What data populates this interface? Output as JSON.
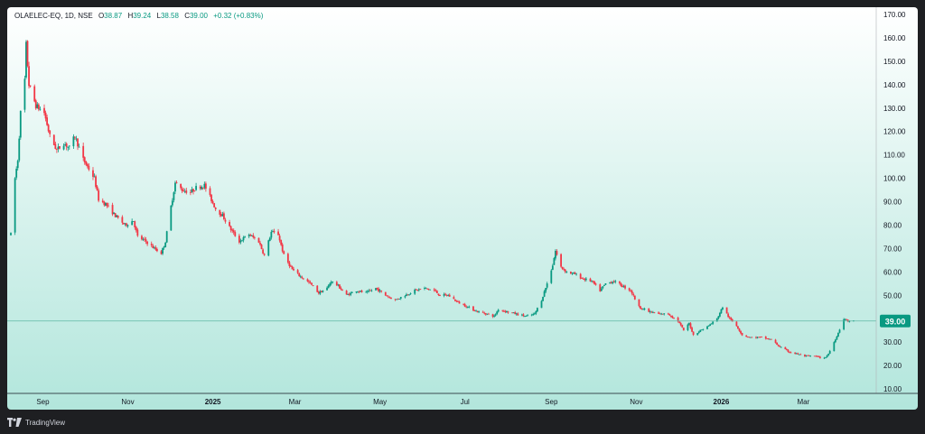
{
  "legend": {
    "symbol": "OLAELEC-EQ, 1D, NSE",
    "open_label": "O",
    "open": "38.87",
    "high_label": "H",
    "high": "39.24",
    "low_label": "L",
    "low": "38.58",
    "close_label": "C",
    "close": "39.00",
    "change": "+0.32 (+0.83%)"
  },
  "branding": {
    "name": "TradingView"
  },
  "colors": {
    "up": "#089981",
    "down": "#f23645",
    "bg_top": "#ffffff",
    "bg_bottom": "#b2e6dc",
    "price_tag": "#089981",
    "price_line": "#5fb8a5"
  },
  "chart_data": {
    "type": "candlestick",
    "ylim": [
      7,
      172
    ],
    "y_ticks": [
      10,
      20,
      30,
      40,
      50,
      60,
      70,
      80,
      90,
      100,
      110,
      120,
      130,
      140,
      150,
      160,
      170
    ],
    "y_tick_labels": [
      "10.00",
      "20.00",
      "30.00",
      "40.00",
      "50.00",
      "60.00",
      "70.00",
      "80.00",
      "90.00",
      "100.00",
      "110.00",
      "120.00",
      "130.00",
      "140.00",
      "150.00",
      "160.00",
      "170.00"
    ],
    "x_range": [
      "2024-08-09",
      "2026-04-12"
    ],
    "x_ticks": [
      {
        "date": "2024-09-01",
        "label": "Sep",
        "bold": false
      },
      {
        "date": "2024-11-01",
        "label": "Nov",
        "bold": false
      },
      {
        "date": "2025-01-01",
        "label": "2025",
        "bold": true
      },
      {
        "date": "2025-03-01",
        "label": "Mar",
        "bold": false
      },
      {
        "date": "2025-05-01",
        "label": "May",
        "bold": false
      },
      {
        "date": "2025-07-01",
        "label": "Jul",
        "bold": false
      },
      {
        "date": "2025-09-01",
        "label": "Sep",
        "bold": false
      },
      {
        "date": "2025-11-01",
        "label": "Nov",
        "bold": false
      },
      {
        "date": "2026-01-01",
        "label": "2026",
        "bold": true
      },
      {
        "date": "2026-03-01",
        "label": "Mar",
        "bold": false
      }
    ],
    "last_price": 39.0,
    "last_price_label": "39.00",
    "grid": false,
    "price_path": [
      [
        "2024-08-09",
        76
      ],
      [
        "2024-08-12",
        100
      ],
      [
        "2024-08-14",
        108
      ],
      [
        "2024-08-16",
        128
      ],
      [
        "2024-08-19",
        142
      ],
      [
        "2024-08-20",
        157
      ],
      [
        "2024-08-22",
        140
      ],
      [
        "2024-08-27",
        131
      ],
      [
        "2024-09-02",
        128
      ],
      [
        "2024-09-06",
        118
      ],
      [
        "2024-09-11",
        112
      ],
      [
        "2024-09-16",
        115
      ],
      [
        "2024-09-20",
        113
      ],
      [
        "2024-09-24",
        118
      ],
      [
        "2024-09-30",
        108
      ],
      [
        "2024-10-04",
        104
      ],
      [
        "2024-10-08",
        100
      ],
      [
        "2024-10-11",
        91
      ],
      [
        "2024-10-16",
        89
      ],
      [
        "2024-10-23",
        84
      ],
      [
        "2024-10-30",
        80
      ],
      [
        "2024-11-05",
        82
      ],
      [
        "2024-11-08",
        75
      ],
      [
        "2024-11-14",
        73
      ],
      [
        "2024-11-20",
        70
      ],
      [
        "2024-11-25",
        68
      ],
      [
        "2024-11-28",
        73
      ],
      [
        "2024-12-02",
        88
      ],
      [
        "2024-12-05",
        98
      ],
      [
        "2024-12-10",
        95
      ],
      [
        "2024-12-16",
        94
      ],
      [
        "2024-12-20",
        96
      ],
      [
        "2024-12-26",
        97
      ],
      [
        "2025-01-03",
        87
      ],
      [
        "2025-01-08",
        84
      ],
      [
        "2025-01-13",
        79
      ],
      [
        "2025-01-20",
        73
      ],
      [
        "2025-01-27",
        76
      ],
      [
        "2025-02-03",
        73
      ],
      [
        "2025-02-07",
        67
      ],
      [
        "2025-02-12",
        77
      ],
      [
        "2025-02-17",
        76
      ],
      [
        "2025-02-21",
        67
      ],
      [
        "2025-02-27",
        61
      ],
      [
        "2025-03-05",
        58
      ],
      [
        "2025-03-12",
        55
      ],
      [
        "2025-03-18",
        51
      ],
      [
        "2025-03-24",
        53
      ],
      [
        "2025-03-27",
        56
      ],
      [
        "2025-04-01",
        54
      ],
      [
        "2025-04-07",
        50
      ],
      [
        "2025-04-14",
        52
      ],
      [
        "2025-04-21",
        51
      ],
      [
        "2025-04-28",
        53
      ],
      [
        "2025-05-05",
        50
      ],
      [
        "2025-05-12",
        48
      ],
      [
        "2025-05-19",
        50
      ],
      [
        "2025-05-26",
        52
      ],
      [
        "2025-06-02",
        53
      ],
      [
        "2025-06-09",
        52
      ],
      [
        "2025-06-13",
        50
      ],
      [
        "2025-06-19",
        50
      ],
      [
        "2025-06-26",
        47
      ],
      [
        "2025-07-03",
        45
      ],
      [
        "2025-07-10",
        43
      ],
      [
        "2025-07-17",
        42
      ],
      [
        "2025-07-22",
        41
      ],
      [
        "2025-07-25",
        44
      ],
      [
        "2025-07-31",
        43
      ],
      [
        "2025-08-07",
        42
      ],
      [
        "2025-08-14",
        41
      ],
      [
        "2025-08-20",
        42
      ],
      [
        "2025-08-25",
        48
      ],
      [
        "2025-08-29",
        55
      ],
      [
        "2025-09-02",
        63
      ],
      [
        "2025-09-04",
        69
      ],
      [
        "2025-09-08",
        62
      ],
      [
        "2025-09-12",
        60
      ],
      [
        "2025-09-18",
        59
      ],
      [
        "2025-09-24",
        57
      ],
      [
        "2025-09-30",
        56
      ],
      [
        "2025-10-06",
        52
      ],
      [
        "2025-10-10",
        55
      ],
      [
        "2025-10-16",
        56
      ],
      [
        "2025-10-22",
        54
      ],
      [
        "2025-10-28",
        52
      ],
      [
        "2025-11-03",
        45
      ],
      [
        "2025-11-10",
        43
      ],
      [
        "2025-11-17",
        42
      ],
      [
        "2025-11-24",
        42
      ],
      [
        "2025-12-01",
        39
      ],
      [
        "2025-12-05",
        35
      ],
      [
        "2025-12-09",
        38
      ],
      [
        "2025-12-12",
        33
      ],
      [
        "2025-12-17",
        35
      ],
      [
        "2025-12-23",
        37
      ],
      [
        "2025-12-29",
        40
      ],
      [
        "2026-01-02",
        45
      ],
      [
        "2026-01-07",
        40
      ],
      [
        "2026-01-12",
        37
      ],
      [
        "2026-01-16",
        33
      ],
      [
        "2026-01-22",
        32
      ],
      [
        "2026-01-30",
        32
      ],
      [
        "2026-02-06",
        31
      ],
      [
        "2026-02-12",
        28
      ],
      [
        "2026-02-18",
        26
      ],
      [
        "2026-02-24",
        25
      ],
      [
        "2026-03-02",
        24
      ],
      [
        "2026-03-09",
        24
      ],
      [
        "2026-03-16",
        23
      ],
      [
        "2026-03-19",
        25
      ],
      [
        "2026-03-23",
        30
      ],
      [
        "2026-03-26",
        34
      ],
      [
        "2026-03-30",
        40
      ],
      [
        "2026-04-02",
        39
      ],
      [
        "2026-04-06",
        39
      ]
    ]
  }
}
